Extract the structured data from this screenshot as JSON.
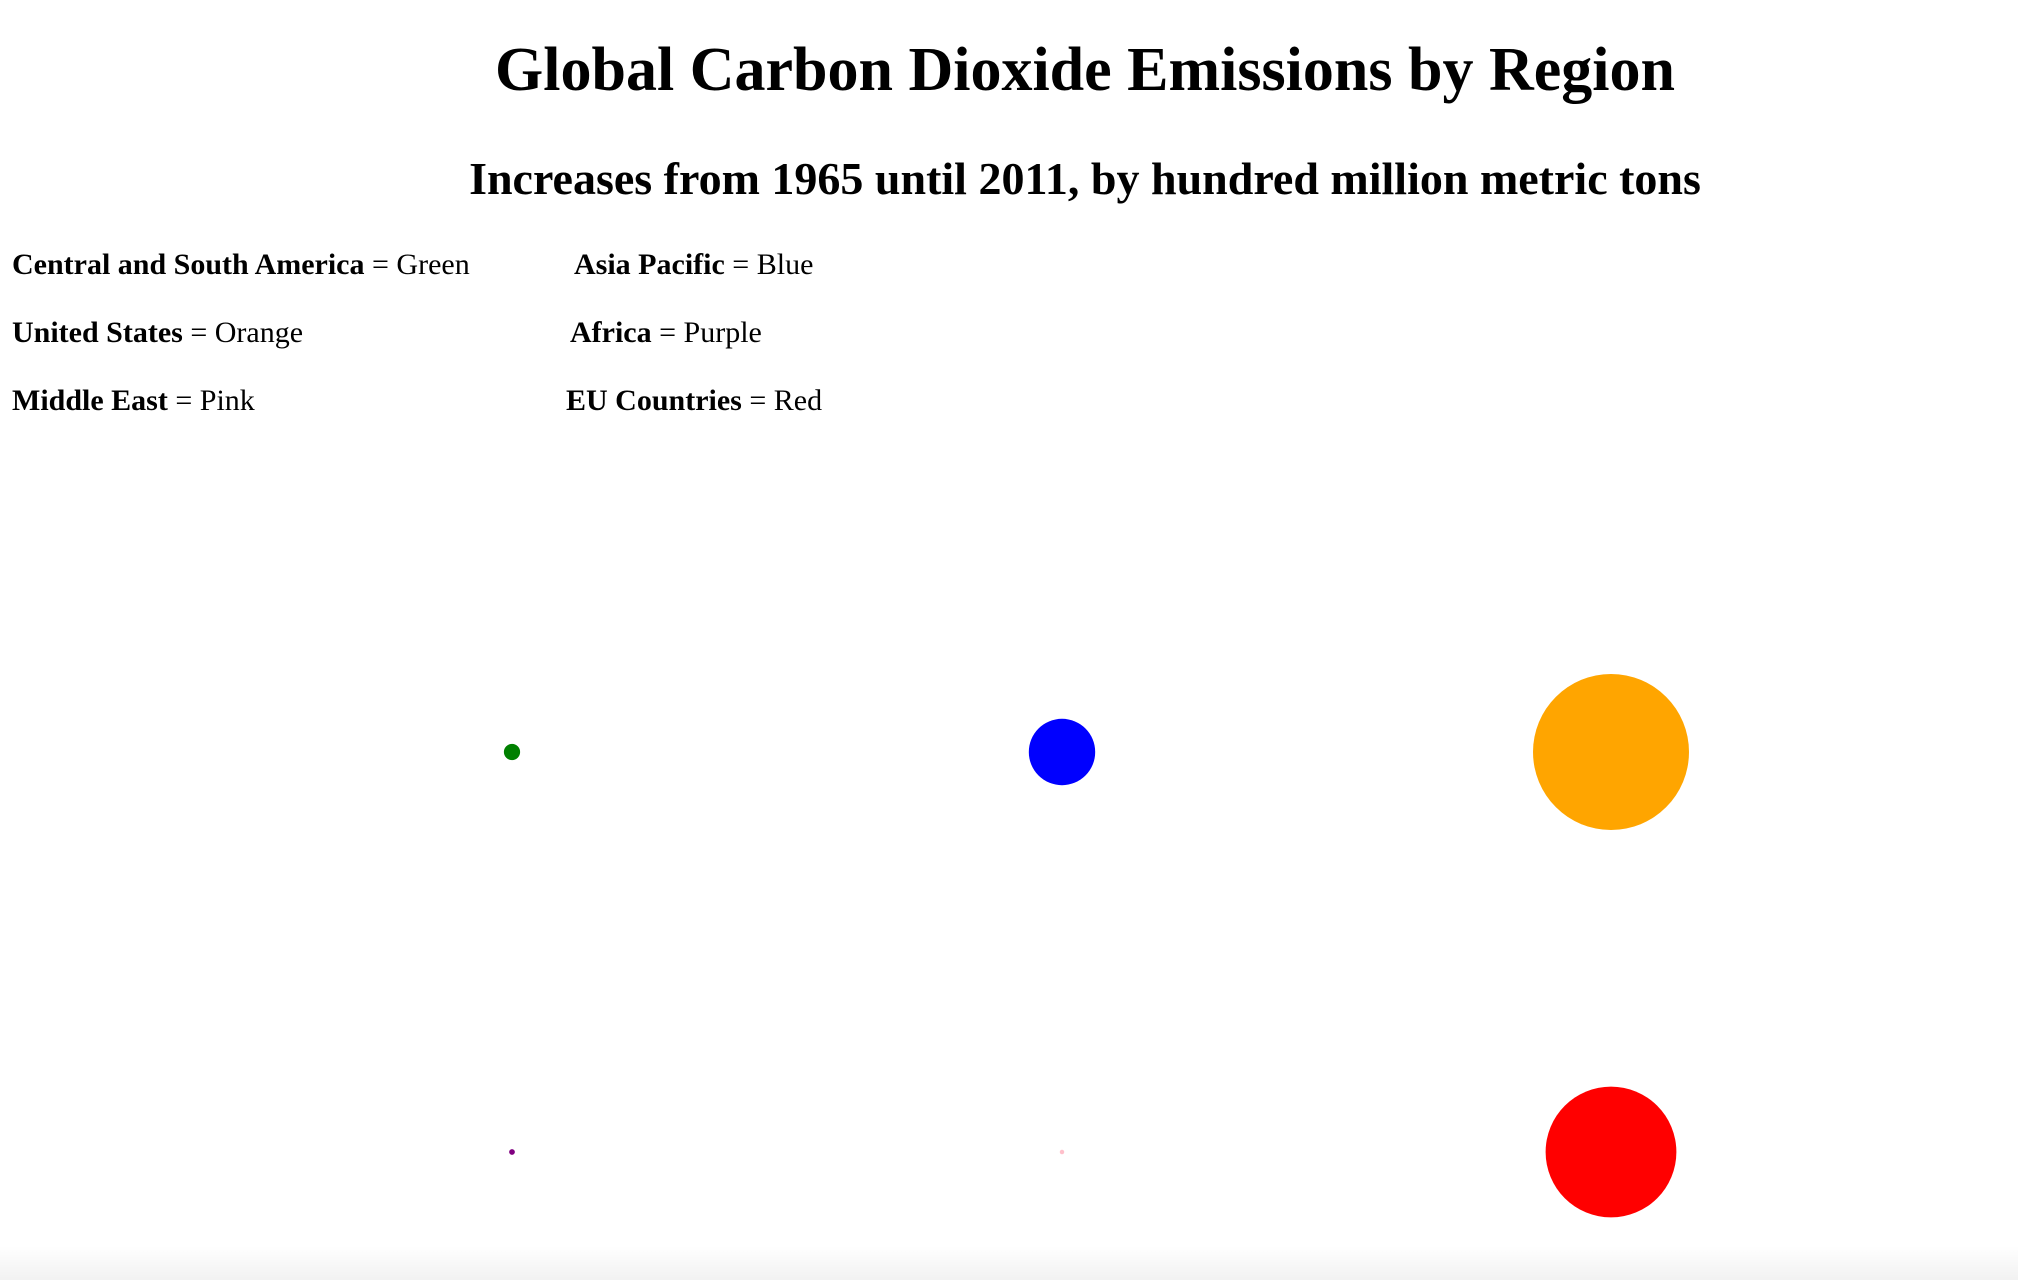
{
  "chart_data": {
    "type": "bubble",
    "title": "Global Carbon Dioxide Emissions by Region",
    "subtitle": "Increases from 1965 until 2011, by hundred million metric tons",
    "legend": [
      {
        "region": "Central and South America",
        "color_name": "Green",
        "color": "#008000"
      },
      {
        "region": "Asia Pacific",
        "color_name": "Blue",
        "color": "#0000ff"
      },
      {
        "region": "United States",
        "color_name": "Orange",
        "color": "#ffa500"
      },
      {
        "region": "Africa",
        "color_name": "Purple",
        "color": "#800080"
      },
      {
        "region": "Middle East",
        "color_name": "Pink",
        "color": "#ffc0cb"
      },
      {
        "region": "EU Countries",
        "color_name": "Red",
        "color": "#ff0000"
      }
    ],
    "series": [
      {
        "name": "Central and South America",
        "value": 0.4
      },
      {
        "name": "Asia Pacific",
        "value": 6.7
      },
      {
        "name": "United States",
        "value": 37.0
      },
      {
        "name": "Africa",
        "value": 0.05
      },
      {
        "name": "Middle East",
        "value": 0.03
      },
      {
        "name": "EU Countries",
        "value": 26.0
      }
    ]
  }
}
